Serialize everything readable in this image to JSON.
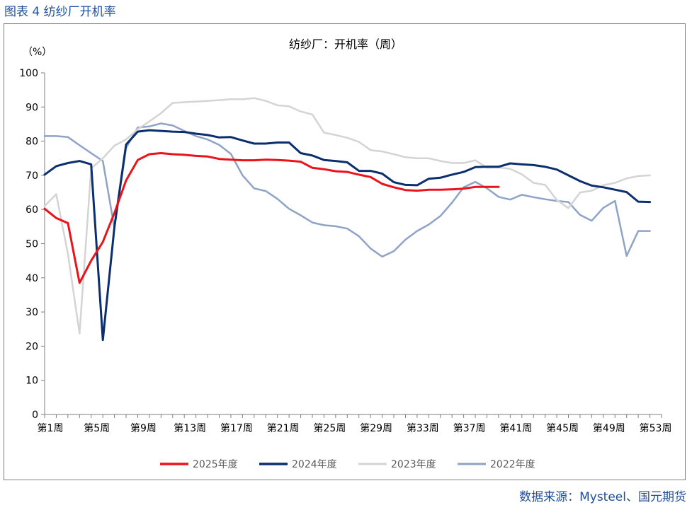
{
  "figure_label": "图表 4  纺纱厂开机率",
  "source": "数据来源：Mysteel、国元期货",
  "colors": {
    "label": "#1f4e9c",
    "axis": "#7f7f7f",
    "text": "#000000"
  },
  "chart_data": {
    "type": "line",
    "title": "纺纱厂：开机率（周）",
    "ylabel": "（%）",
    "ylim": [
      0,
      100
    ],
    "yticks": [
      0,
      10,
      20,
      30,
      40,
      50,
      60,
      70,
      80,
      90,
      100
    ],
    "xlim": [
      1,
      54
    ],
    "xticks": [
      1,
      5,
      9,
      13,
      17,
      21,
      25,
      29,
      33,
      37,
      41,
      45,
      49,
      53
    ],
    "xtick_labels": [
      "第1周",
      "第5周",
      "第9周",
      "第13周",
      "第17周",
      "第21周",
      "第25周",
      "第29周",
      "第33周",
      "第37周",
      "第41周",
      "第45周",
      "第49周",
      "第53周"
    ],
    "legend_position": "bottom",
    "series": [
      {
        "name": "2025年度",
        "color": "#e8131b",
        "width": 3,
        "x": [
          1,
          2,
          3,
          4,
          5,
          6,
          7,
          8,
          9,
          10,
          11,
          12,
          13,
          14,
          15,
          16,
          17,
          18,
          19,
          20,
          21,
          22,
          23,
          24,
          25,
          26,
          27,
          28,
          29,
          30,
          31,
          32,
          33,
          34,
          35,
          36,
          37,
          38,
          39,
          40
        ],
        "y": [
          60.2,
          57.5,
          56,
          38.5,
          45,
          50.5,
          59,
          68.5,
          74.5,
          76.2,
          76.5,
          76.2,
          76,
          75.7,
          75.5,
          74.8,
          74.6,
          74.4,
          74.4,
          74.6,
          74.5,
          74.3,
          74,
          72.2,
          71.8,
          71.2,
          71,
          70.2,
          69.5,
          67.5,
          66.5,
          65.7,
          65.5,
          65.8,
          65.8,
          65.9,
          66.1,
          66.6,
          66.6,
          66.6
        ]
      },
      {
        "name": "2024年度",
        "color": "#0b2f6e",
        "width": 3,
        "x": [
          1,
          2,
          3,
          4,
          5,
          6,
          7,
          8,
          9,
          10,
          11,
          12,
          13,
          14,
          15,
          16,
          17,
          18,
          19,
          20,
          21,
          22,
          23,
          24,
          25,
          26,
          27,
          28,
          29,
          30,
          31,
          32,
          33,
          34,
          35,
          36,
          37,
          38,
          39,
          40,
          41,
          42,
          43,
          44,
          45,
          46,
          47,
          48,
          49,
          50,
          51,
          52,
          53
        ],
        "y": [
          70.2,
          72.7,
          73.6,
          74.2,
          73.2,
          21.8,
          55,
          79,
          82.8,
          83.2,
          83,
          82.8,
          82.7,
          82.2,
          81.8,
          81.1,
          81.2,
          80.2,
          79.3,
          79.3,
          79.6,
          79.6,
          76.5,
          75.8,
          74.5,
          74.2,
          73.8,
          71.3,
          71.3,
          70.5,
          68,
          67.2,
          67.1,
          69,
          69.3,
          70.2,
          71,
          72.4,
          72.5,
          72.5,
          73.5,
          73.2,
          73,
          72.5,
          71.7,
          70,
          68.3,
          67,
          66.5,
          65.8,
          65.1,
          62.3,
          62.2
        ]
      },
      {
        "name": "2023年度",
        "color": "#d4d4d4",
        "width": 2.5,
        "x": [
          1,
          2,
          3,
          4,
          5,
          6,
          7,
          8,
          9,
          10,
          11,
          12,
          13,
          14,
          15,
          16,
          17,
          18,
          19,
          20,
          21,
          22,
          23,
          24,
          25,
          26,
          27,
          28,
          29,
          30,
          31,
          32,
          33,
          34,
          35,
          36,
          37,
          38,
          39,
          40,
          41,
          42,
          43,
          44,
          45,
          46,
          47,
          48,
          49,
          50,
          51,
          52,
          53
        ],
        "y": [
          61,
          64.5,
          47,
          23.7,
          72,
          75,
          78.7,
          80.5,
          83.5,
          85.8,
          88.2,
          91.2,
          91.4,
          91.6,
          91.8,
          92,
          92.3,
          92.3,
          92.6,
          91.8,
          90.5,
          90.2,
          88.7,
          87.8,
          82.5,
          81.8,
          81,
          79.8,
          77.4,
          77,
          76.2,
          75.3,
          75,
          75,
          74.2,
          73.6,
          73.6,
          74.4,
          72.2,
          72.3,
          71.9,
          70.3,
          67.8,
          67.2,
          62.8,
          60.4,
          65,
          65.5,
          67.1,
          67.8,
          69.1,
          69.8,
          70
        ]
      },
      {
        "name": "2022年度",
        "color": "#8ea3c6",
        "width": 2.5,
        "x": [
          1,
          2,
          3,
          4,
          5,
          6,
          7,
          8,
          9,
          10,
          11,
          12,
          13,
          14,
          15,
          16,
          17,
          18,
          19,
          20,
          21,
          22,
          23,
          24,
          25,
          26,
          27,
          28,
          29,
          30,
          31,
          32,
          33,
          34,
          35,
          36,
          37,
          38,
          39,
          40,
          41,
          42,
          43,
          44,
          45,
          46,
          47,
          48,
          49,
          50,
          51,
          52,
          53
        ],
        "y": [
          81.5,
          81.5,
          81.2,
          78.8,
          76.5,
          74.2,
          54.5,
          78,
          84,
          84.3,
          85.2,
          84.6,
          83,
          81.5,
          80.5,
          78.9,
          76.3,
          70,
          66.2,
          65.4,
          63.1,
          60.2,
          58.3,
          56.2,
          55.4,
          55.1,
          54.4,
          52.2,
          48.6,
          46.2,
          47.8,
          51.2,
          53.7,
          55.6,
          58.1,
          62,
          66.5,
          68.1,
          66.2,
          63.7,
          62.9,
          64.3,
          63.6,
          63,
          62.5,
          62.2,
          58.4,
          56.7,
          60.5,
          62.5,
          46.4,
          53.7,
          53.7
        ]
      }
    ]
  }
}
